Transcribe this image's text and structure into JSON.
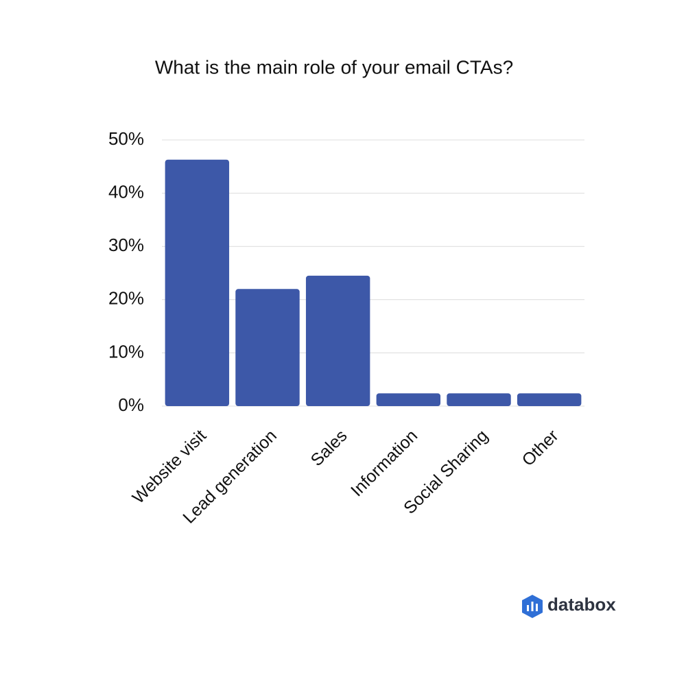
{
  "chart_data": {
    "type": "bar",
    "title": "What is the main role of your email CTAs?",
    "categories": [
      "Website visit",
      "Lead generation",
      "Sales",
      "Information",
      "Social Sharing",
      "Other"
    ],
    "values": [
      46.3,
      22,
      24.5,
      2.4,
      2.4,
      2.4
    ],
    "color": "#3d58a8",
    "ylim": [
      0,
      50
    ],
    "yticks": [
      {
        "value": 0,
        "label": "0%"
      },
      {
        "value": 10,
        "label": "10%"
      },
      {
        "value": 20,
        "label": "20%"
      },
      {
        "value": 30,
        "label": "30%"
      },
      {
        "value": 40,
        "label": "40%"
      },
      {
        "value": 50,
        "label": "50%"
      }
    ],
    "grid": true
  },
  "brand": "databox"
}
